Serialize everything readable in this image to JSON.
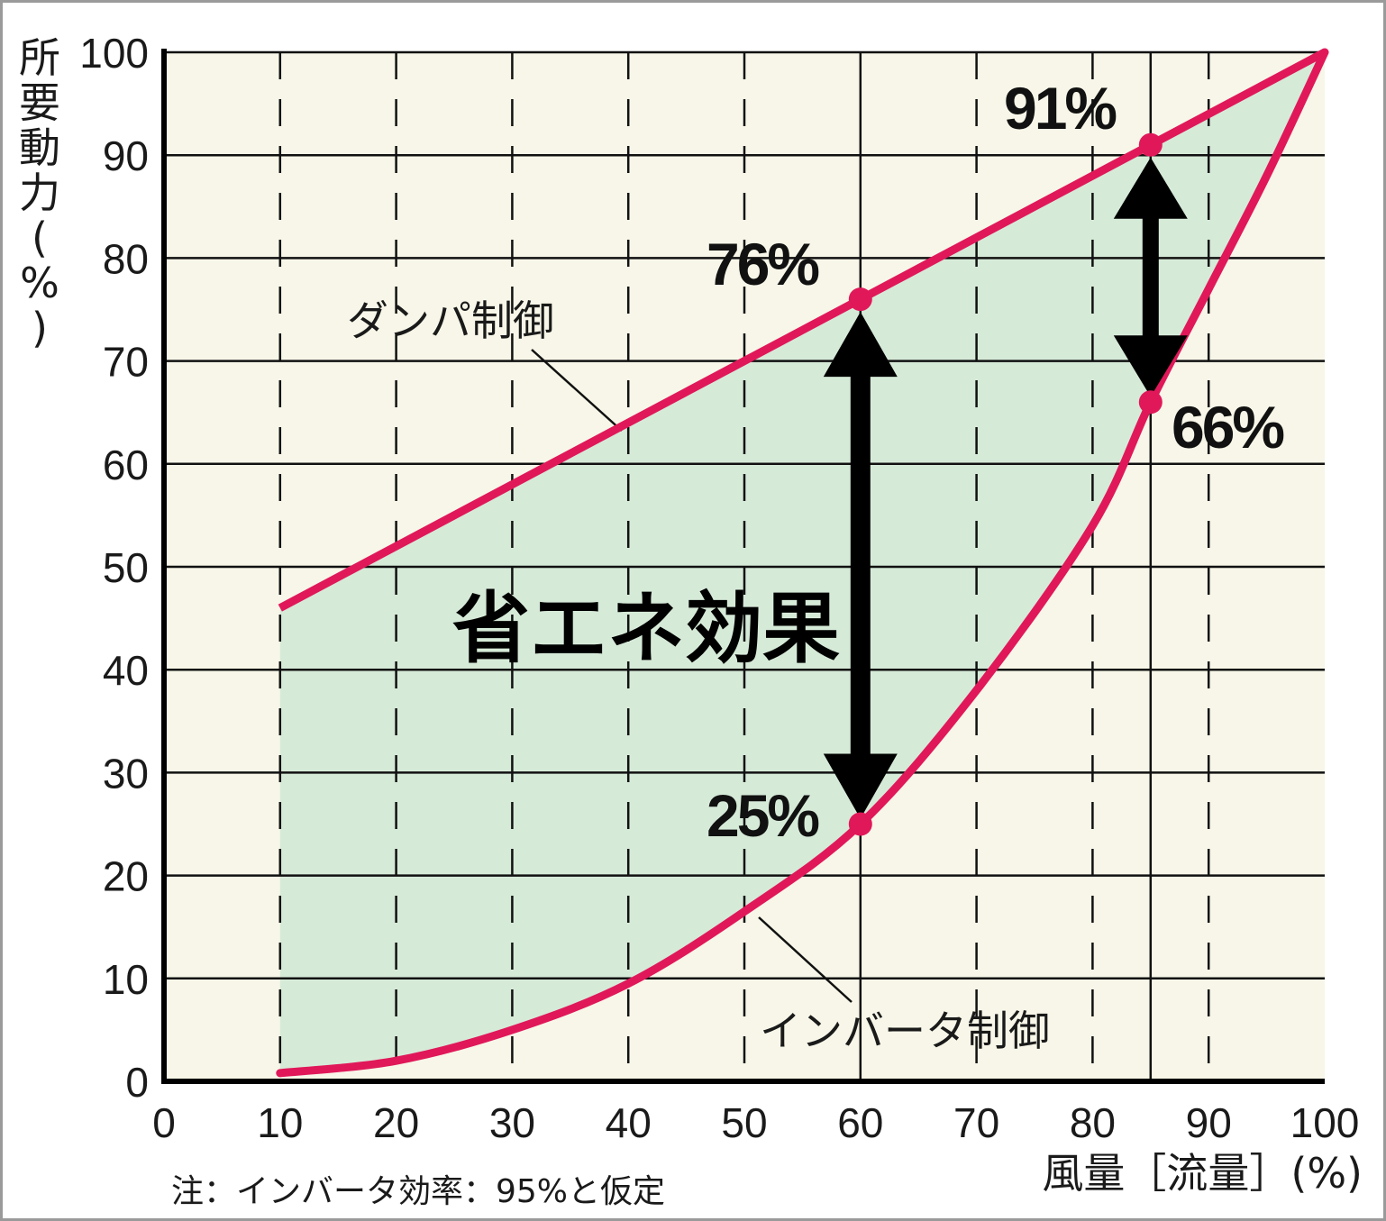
{
  "chart_data": {
    "type": "line",
    "title": "",
    "xlabel": "風量［流量］(%)",
    "ylabel": "所要動力(%)",
    "xlim": [
      0,
      100
    ],
    "ylim": [
      0,
      100
    ],
    "x_ticks": [
      "0",
      "10",
      "20",
      "30",
      "40",
      "50",
      "60",
      "70",
      "80",
      "90",
      "100"
    ],
    "y_ticks": [
      "0",
      "10",
      "20",
      "30",
      "40",
      "50",
      "60",
      "70",
      "80",
      "90",
      "100"
    ],
    "grid": "horizontal solid, vertical dashed (solid at 60 and 85)",
    "series": [
      {
        "name": "ダンパ制御",
        "color": "#e0185a",
        "x": [
          10,
          60,
          85,
          100
        ],
        "y": [
          46,
          76,
          91,
          100
        ]
      },
      {
        "name": "インバータ制御",
        "color": "#e0185a",
        "x": [
          10,
          20,
          30,
          40,
          50,
          60,
          70,
          80,
          85,
          90,
          95,
          100
        ],
        "y": [
          0.8,
          2,
          5,
          9.5,
          16.5,
          25,
          38,
          54,
          66,
          77,
          88,
          100
        ]
      }
    ],
    "highlight_points": [
      {
        "x": 60,
        "y": 76,
        "label": "76%"
      },
      {
        "x": 60,
        "y": 25,
        "label": "25%"
      },
      {
        "x": 85,
        "y": 91,
        "label": "91%"
      },
      {
        "x": 85,
        "y": 66,
        "label": "66%"
      }
    ],
    "region_label": "省エネ効果",
    "note": "注：インバータ効率：95%と仮定",
    "colors": {
      "plot_bg": "#f7f6e8",
      "fill": "#d6ead8",
      "curve": "#e0185a",
      "grid": "#111111",
      "arrow": "#000000"
    }
  }
}
